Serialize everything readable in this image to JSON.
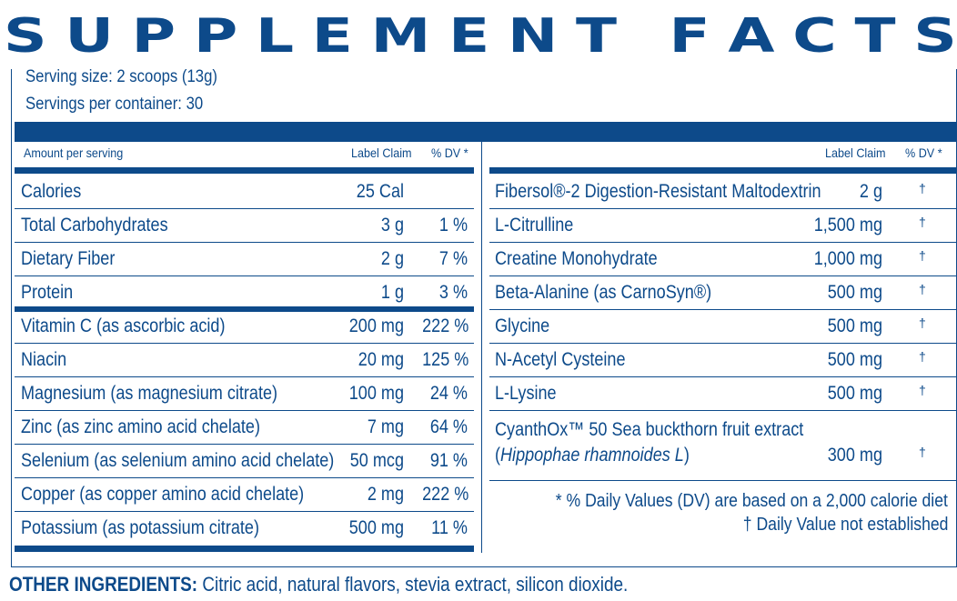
{
  "title_letters": [
    "S",
    "U",
    "P",
    "P",
    "L",
    "E",
    "M",
    "E",
    "N",
    "T",
    " ",
    "F",
    "A",
    "C",
    "T",
    "S"
  ],
  "title": "SUPPLEMENT FACTS",
  "serving_size": "Serving size: 2 scoops (13g)",
  "servings_per_container": "Servings per container: 30",
  "headers": {
    "amount_per_serving": "Amount per serving",
    "label_claim": "Label Claim",
    "dv": "% DV *",
    "label_claim_right": "Label Claim",
    "dv_right": "% DV *"
  },
  "left_rows": [
    {
      "name": "Calories",
      "claim": "25 Cal",
      "dv": ""
    },
    {
      "name": "Total Carbohydrates",
      "claim": "3 g",
      "dv": "1 %"
    },
    {
      "name": "Dietary Fiber",
      "claim": "2 g",
      "dv": "7 %"
    },
    {
      "name": "Protein",
      "claim": "1 g",
      "dv": "3 %"
    },
    {
      "name": "Vitamin C (as ascorbic acid)",
      "claim": "200 mg",
      "dv": "222 %"
    },
    {
      "name": "Niacin",
      "claim": "20 mg",
      "dv": "125 %"
    },
    {
      "name": "Magnesium (as magnesium citrate)",
      "claim": "100 mg",
      "dv": "24 %"
    },
    {
      "name": "Zinc (as zinc amino acid chelate)",
      "claim": "7 mg",
      "dv": "64 %"
    },
    {
      "name": "Selenium (as selenium amino acid chelate)",
      "claim": "50 mcg",
      "dv": "91 %"
    },
    {
      "name": "Copper (as copper amino acid chelate)",
      "claim": "2 mg",
      "dv": "222 %"
    },
    {
      "name": "Potassium (as potassium citrate)",
      "claim": "500 mg",
      "dv": "11 %"
    }
  ],
  "right_rows": [
    {
      "name": "Fibersol®-2 Digestion-Resistant Maltodextrin",
      "claim": "2 g",
      "dv": "†"
    },
    {
      "name": "L-Citrulline",
      "claim": "1,500 mg",
      "dv": "†"
    },
    {
      "name": "Creatine Monohydrate",
      "claim": "1,000 mg",
      "dv": "†"
    },
    {
      "name": "Beta-Alanine (as CarnoSyn®)",
      "claim": "500 mg",
      "dv": "†"
    },
    {
      "name": "Glycine",
      "claim": "500 mg",
      "dv": "†"
    },
    {
      "name": "N-Acetyl Cysteine",
      "claim": "500 mg",
      "dv": "†"
    },
    {
      "name": "L-Lysine",
      "claim": "500 mg",
      "dv": "†"
    }
  ],
  "cyanthox": {
    "line1": "CyanthOx™ 50 Sea buckthorn fruit extract",
    "line2_open": "(",
    "line2_italic": "Hippophae rhamnoides L",
    "line2_close": ")",
    "claim": "300 mg",
    "dv": "†"
  },
  "footnotes": {
    "dv_note": "* % Daily Values (DV) are based on a 2,000 calorie diet",
    "dagger_note": "† Daily Value not established"
  },
  "other_ingredients": {
    "label": "OTHER INGREDIENTS:",
    "text": " Citric acid, natural flavors, stevia extract, silicon dioxide."
  }
}
